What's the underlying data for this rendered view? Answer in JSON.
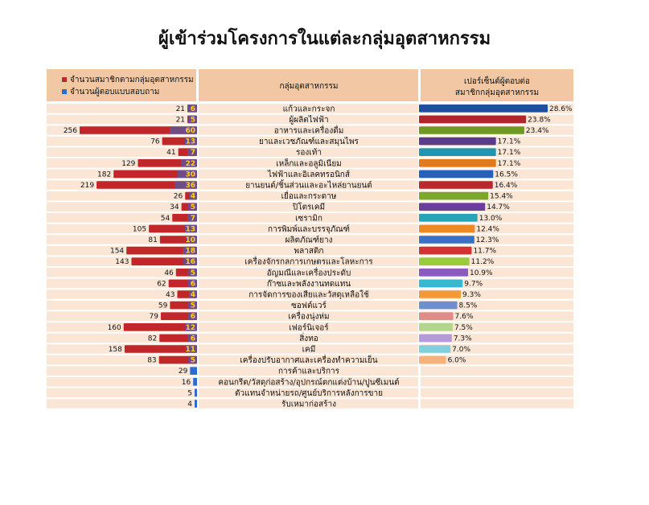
{
  "title": "ผู้เข้าร่วมโครงการในแต่ละกลุ่มอุตสาหกรรม",
  "header": {
    "legend_members": "จำนวนสมาชิกตามกลุ่มอุตสาหกรรม",
    "legend_respondents": "จำนวนผู้ตอบแบบสอบถาม",
    "group_header": "กลุ่มอุตสาหกรรม",
    "percent_header_line1": "เปอร์เซ็นต์ผู้ตอบต่อ",
    "percent_header_line2": "สมาชิกกลุ่มอุตสาหกรรม"
  },
  "colors": {
    "members_bar": "#c0262a",
    "respondents_bar": "#2e6bd0",
    "header_bg": "#f2c7a3",
    "row_bg": "#fbe6d6"
  },
  "chart_data": {
    "type": "table",
    "series": [
      {
        "name": "จำนวนสมาชิกตามกลุ่มอุตสาหกรรม",
        "key": "members"
      },
      {
        "name": "จำนวนผู้ตอบแบบสอบถาม",
        "key": "respondents"
      }
    ],
    "rows": [
      {
        "group": "แก้วและกระจก",
        "members": 21,
        "respondents": 6,
        "percent": 28.6,
        "pct_label": "28.6%",
        "color": "#1d4f9c"
      },
      {
        "group": "ผู้ผลิตไฟฟ้า",
        "members": 21,
        "respondents": 5,
        "percent": 23.8,
        "pct_label": "23.8%",
        "color": "#b0262c"
      },
      {
        "group": "อาหารและเครื่องดื่ม",
        "members": 256,
        "respondents": 60,
        "percent": 23.4,
        "pct_label": "23.4%",
        "color": "#6f9a22"
      },
      {
        "group": "ยาและเวชภัณฑ์และสมุนไพร",
        "members": 76,
        "respondents": 13,
        "percent": 17.1,
        "pct_label": "17.1%",
        "color": "#5c3a8e"
      },
      {
        "group": "รองเท้า",
        "members": 41,
        "respondents": 7,
        "percent": 17.1,
        "pct_label": "17.1%",
        "color": "#1f95b0"
      },
      {
        "group": "เหล็กและอลูมิเนียม",
        "members": 129,
        "respondents": 22,
        "percent": 17.1,
        "pct_label": "17.1%",
        "color": "#e07a1c"
      },
      {
        "group": "ไฟฟ้าและอิเลคทรอนิกส์",
        "members": 182,
        "respondents": 30,
        "percent": 16.5,
        "pct_label": "16.5%",
        "color": "#2a5fb8"
      },
      {
        "group": "ยานยนต์/ชิ้นส่วนและอะไหล่ยานยนต์",
        "members": 219,
        "respondents": 36,
        "percent": 16.4,
        "pct_label": "16.4%",
        "color": "#b8282c"
      },
      {
        "group": "เยื่อและกระดาษ",
        "members": 26,
        "respondents": 4,
        "percent": 15.4,
        "pct_label": "15.4%",
        "color": "#7aa82a"
      },
      {
        "group": "ปิโตรเคมี",
        "members": 34,
        "respondents": 5,
        "percent": 14.7,
        "pct_label": "14.7%",
        "color": "#6a3f9a"
      },
      {
        "group": "เซรามิก",
        "members": 54,
        "respondents": 7,
        "percent": 13.0,
        "pct_label": "13.0%",
        "color": "#2aa3b8"
      },
      {
        "group": "การพิมพ์และบรรจุภัณฑ์",
        "members": 105,
        "respondents": 13,
        "percent": 12.4,
        "pct_label": "12.4%",
        "color": "#ee8a24"
      },
      {
        "group": "ผลิตภัณฑ์ยาง",
        "members": 81,
        "respondents": 10,
        "percent": 12.3,
        "pct_label": "12.3%",
        "color": "#3a70c8"
      },
      {
        "group": "พลาสติก",
        "members": 154,
        "respondents": 18,
        "percent": 11.7,
        "pct_label": "11.7%",
        "color": "#d63034"
      },
      {
        "group": "เครื่องจักรกลการเกษตรและโลหะการ",
        "members": 143,
        "respondents": 16,
        "percent": 11.2,
        "pct_label": "11.2%",
        "color": "#9acb3a"
      },
      {
        "group": "อัญมณีและเครื่องประดับ",
        "members": 46,
        "respondents": 5,
        "percent": 10.9,
        "pct_label": "10.9%",
        "color": "#8a5ac0"
      },
      {
        "group": "ก๊าซและพลังงานทดแทน",
        "members": 62,
        "respondents": 6,
        "percent": 9.7,
        "pct_label": "9.7%",
        "color": "#38b8d0"
      },
      {
        "group": "การจัดการของเสียและวัสดุเหลือใช้",
        "members": 43,
        "respondents": 4,
        "percent": 9.3,
        "pct_label": "9.3%",
        "color": "#f29a3a"
      },
      {
        "group": "ซอฟต์แวร์",
        "members": 59,
        "respondents": 5,
        "percent": 8.5,
        "pct_label": "8.5%",
        "color": "#6d8fd0"
      },
      {
        "group": "เครื่องนุ่งห่ม",
        "members": 79,
        "respondents": 6,
        "percent": 7.6,
        "pct_label": "7.6%",
        "color": "#e08a8a"
      },
      {
        "group": "เฟอร์นิเจอร์",
        "members": 160,
        "respondents": 12,
        "percent": 7.5,
        "pct_label": "7.5%",
        "color": "#b5d68a"
      },
      {
        "group": "สิ่งทอ",
        "members": 82,
        "respondents": 6,
        "percent": 7.3,
        "pct_label": "7.3%",
        "color": "#b49ad6"
      },
      {
        "group": "เคมี",
        "members": 158,
        "respondents": 11,
        "percent": 7.0,
        "pct_label": "7.0%",
        "color": "#7fd0dc"
      },
      {
        "group": "เครื่องปรับอากาศและเครื่องทำความเย็น",
        "members": 83,
        "respondents": 5,
        "percent": 6.0,
        "pct_label": "6.0%",
        "color": "#f5b27a"
      },
      {
        "group": "การค้าและบริการ",
        "members": null,
        "respondents": 29,
        "percent": null,
        "pct_label": "",
        "color": ""
      },
      {
        "group": "คอนกรีต/วัสดุก่อสร้าง/อุปกรณ์ตกแต่งบ้าน/ปูนซีเมนต์",
        "members": null,
        "respondents": 16,
        "percent": null,
        "pct_label": "",
        "color": ""
      },
      {
        "group": "ตัวแทนจำหน่ายรถ/ศูนย์บริการหลังการขาย",
        "members": null,
        "respondents": 5,
        "percent": null,
        "pct_label": "",
        "color": ""
      },
      {
        "group": "รับเหมาก่อสร้าง",
        "members": null,
        "respondents": 4,
        "percent": null,
        "pct_label": "",
        "color": ""
      }
    ],
    "xlim_members": [
      0,
      256
    ],
    "xlim_percent": [
      0,
      28.6
    ]
  }
}
